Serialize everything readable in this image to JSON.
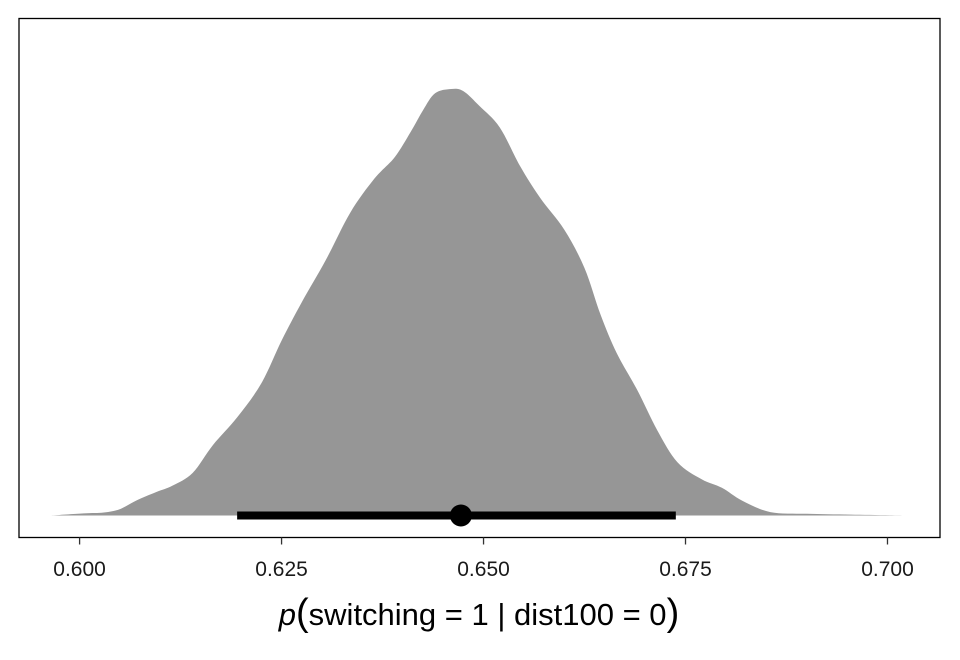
{
  "chart_data": {
    "type": "area",
    "subtype": "density-with-interval",
    "title": "",
    "xlabel_parts": {
      "italic": "p",
      "open": "(",
      "body": "switching = 1 | dist100 = 0",
      "close": ")"
    },
    "ylabel": "",
    "xlim": [
      0.5925,
      0.7065
    ],
    "ylim": [
      0,
      1.03
    ],
    "x_ticks": [
      0.6,
      0.625,
      0.65,
      0.675,
      0.7
    ],
    "x_tick_labels": [
      "0.600",
      "0.625",
      "0.650",
      "0.675",
      "0.700"
    ],
    "grid": false,
    "fill_color": "#969696",
    "interval_color": "#000000",
    "density": {
      "x": [
        0.5965,
        0.6005,
        0.603,
        0.605,
        0.607,
        0.6095,
        0.6115,
        0.614,
        0.6165,
        0.6195,
        0.6225,
        0.625,
        0.6275,
        0.6305,
        0.6335,
        0.6365,
        0.639,
        0.641,
        0.6425,
        0.644,
        0.646,
        0.6475,
        0.6495,
        0.652,
        0.6545,
        0.657,
        0.66,
        0.6625,
        0.6645,
        0.6665,
        0.669,
        0.6715,
        0.674,
        0.677,
        0.6795,
        0.682,
        0.6855,
        0.69,
        0.6955,
        0.7025
      ],
      "y": [
        0.0,
        0.005,
        0.007,
        0.015,
        0.035,
        0.055,
        0.07,
        0.1,
        0.165,
        0.23,
        0.31,
        0.41,
        0.5,
        0.6,
        0.71,
        0.79,
        0.84,
        0.9,
        0.95,
        0.99,
        1.0,
        0.995,
        0.96,
        0.91,
        0.82,
        0.745,
        0.67,
        0.58,
        0.47,
        0.38,
        0.295,
        0.2,
        0.125,
        0.085,
        0.065,
        0.035,
        0.008,
        0.004,
        0.002,
        0.0
      ]
    },
    "point_estimate": 0.6472,
    "interval": [
      0.6195,
      0.6738
    ]
  }
}
